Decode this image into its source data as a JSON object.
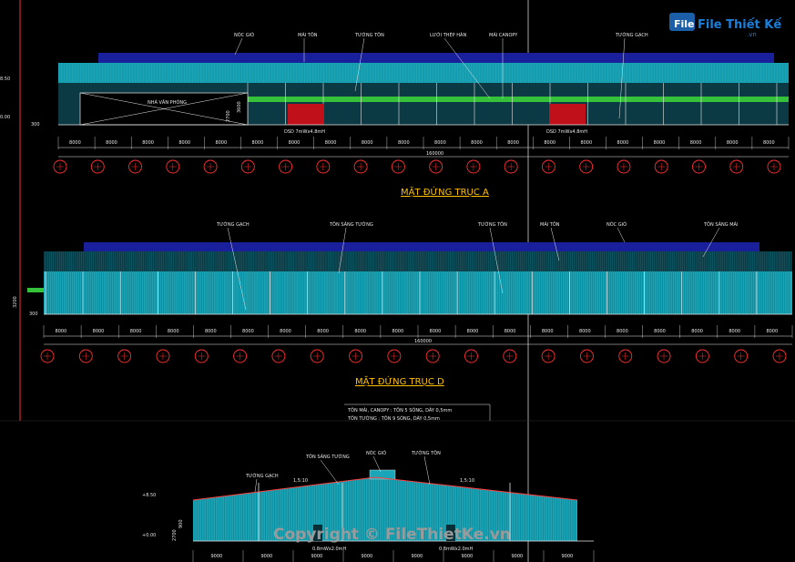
{
  "logo": {
    "text": "File Thiết Kế",
    "domain": ".vn"
  },
  "colors": {
    "roof": "#1a1f9c",
    "wall": "#1aa6b8",
    "wall_dark": "#0a2e36",
    "green": "#35c23a",
    "door": "#c0101a",
    "grid": "#ff3030",
    "title": "#ffc000",
    "background": "#000000"
  },
  "elevation_a": {
    "title": "MẶT ĐỨNG TRỤC A",
    "labels": [
      "NÓC GIÓ",
      "MÁI TÔN",
      "TƯỜNG TÔN",
      "LƯỚI THÉP HÀN",
      "MÁI CANOPY",
      "TƯỜNG GẠCH"
    ],
    "office_label": "NHÀ VĂN PHÒNG",
    "door_label": "DSD 7mWx4.8mH",
    "dims": [
      "8000",
      "8000",
      "8000",
      "8000",
      "8000",
      "8000",
      "8000",
      "8000",
      "8000",
      "8000",
      "8000",
      "8000",
      "8000",
      "8000",
      "8000",
      "8000",
      "8000",
      "8000",
      "8000",
      "8000"
    ],
    "total": "160000",
    "levels": [
      "8.50",
      "0.00",
      "300",
      "2700",
      "3600"
    ]
  },
  "elevation_d": {
    "title": "MẶT ĐỨNG TRỤC D",
    "labels": [
      "TƯỜNG GẠCH",
      "TÔN SÁNG TƯỜNG",
      "TƯỜNG TÔN",
      "MÁI TÔN",
      "NÓC GIÓ",
      "TÔN SÁNG MÁI"
    ],
    "dims": [
      "8000",
      "8000",
      "8000",
      "8000",
      "8000",
      "8000",
      "8000",
      "8000",
      "8000",
      "8000",
      "8000",
      "8000",
      "8000",
      "8000",
      "8000",
      "8000",
      "8000",
      "8000",
      "8000",
      "8000"
    ],
    "total": "160000",
    "levels": [
      "3200",
      "300"
    ]
  },
  "notes": [
    "TÔN MÁI, CANOPY : TÔN 5 SÓNG, DÀY 0,5mm",
    "TÔN TƯỜNG : TÔN 9 SÓNG, DÀY 0,5mm"
  ],
  "side_elevation": {
    "labels": [
      "TÔN SÁNG TƯỜNG",
      "NÓC GIÓ",
      "TƯỜNG TÔN",
      "TƯỜNG GẠCH"
    ],
    "slopes": [
      "1,5:10",
      "1,5:10"
    ],
    "levels": [
      "+8.50",
      "+0.00",
      "2700",
      "900"
    ],
    "door_labels": [
      "0.8mWx2.0mH",
      "0.8mWx2.0mH"
    ],
    "dims": [
      "9000",
      "9000",
      "9000",
      "9000",
      "9000",
      "9000",
      "9000",
      "9000"
    ]
  },
  "watermark": "Copyright © FileThietKe.vn"
}
